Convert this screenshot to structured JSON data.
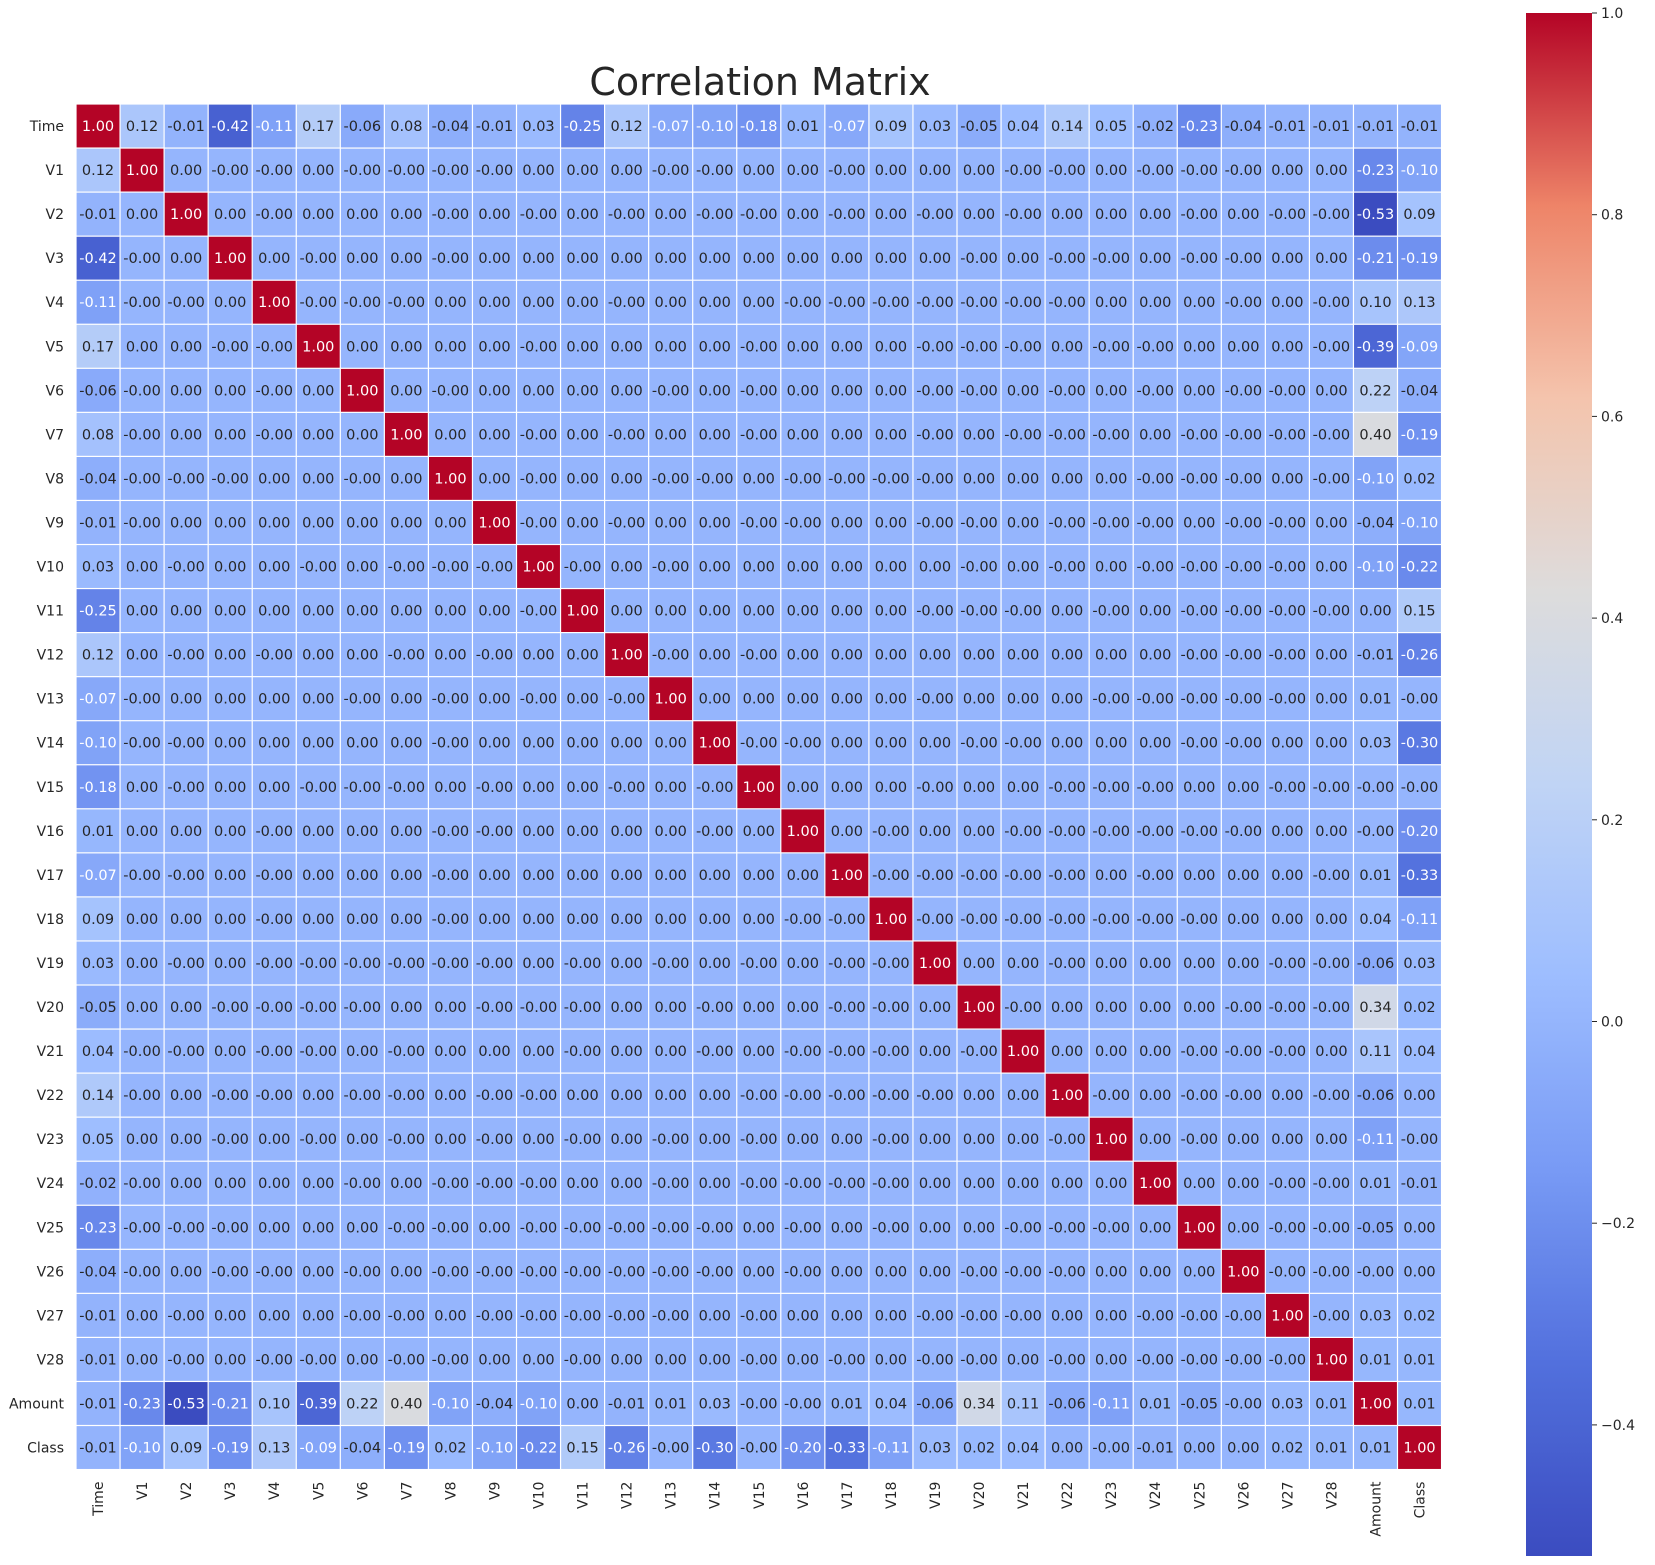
{
  "chart_data": {
    "type": "heatmap",
    "title": "Correlation Matrix",
    "colormap": "coolwarm",
    "vmin": -0.53,
    "vmax": 1.0,
    "colorbar_ticks": [
      1.0,
      0.8,
      0.6,
      0.4,
      0.2,
      0.0,
      -0.2,
      -0.4
    ],
    "colorbar_tick_labels": [
      "1.0",
      "0.8",
      "0.6",
      "0.4",
      "0.2",
      "0.0",
      "−0.2",
      "−0.4"
    ],
    "labels": [
      "Time",
      "V1",
      "V2",
      "V3",
      "V4",
      "V5",
      "V6",
      "V7",
      "V8",
      "V9",
      "V10",
      "V11",
      "V12",
      "V13",
      "V14",
      "V15",
      "V16",
      "V17",
      "V18",
      "V19",
      "V20",
      "V21",
      "V22",
      "V23",
      "V24",
      "V25",
      "V26",
      "V27",
      "V28",
      "Amount",
      "Class"
    ],
    "matrix": [
      [
        "1.00",
        "0.12",
        "-0.01",
        "-0.42",
        "-0.11",
        "0.17",
        "-0.06",
        "0.08",
        "-0.04",
        "-0.01",
        "0.03",
        "-0.25",
        "0.12",
        "-0.07",
        "-0.10",
        "-0.18",
        "0.01",
        "-0.07",
        "0.09",
        "0.03",
        "-0.05",
        "0.04",
        "0.14",
        "0.05",
        "-0.02",
        "-0.23",
        "-0.04",
        "-0.01",
        "-0.01",
        "-0.01",
        "-0.01"
      ],
      [
        "0.12",
        "1.00",
        "0.00",
        "-0.00",
        "-0.00",
        "0.00",
        "-0.00",
        "-0.00",
        "-0.00",
        "-0.00",
        "0.00",
        "0.00",
        "0.00",
        "-0.00",
        "-0.00",
        "0.00",
        "0.00",
        "-0.00",
        "0.00",
        "0.00",
        "0.00",
        "-0.00",
        "-0.00",
        "0.00",
        "-0.00",
        "-0.00",
        "-0.00",
        "0.00",
        "0.00",
        "-0.23",
        "-0.10"
      ],
      [
        "-0.01",
        "0.00",
        "1.00",
        "0.00",
        "-0.00",
        "0.00",
        "0.00",
        "0.00",
        "-0.00",
        "0.00",
        "-0.00",
        "0.00",
        "-0.00",
        "0.00",
        "-0.00",
        "-0.00",
        "0.00",
        "-0.00",
        "0.00",
        "-0.00",
        "0.00",
        "-0.00",
        "0.00",
        "0.00",
        "0.00",
        "-0.00",
        "0.00",
        "-0.00",
        "-0.00",
        "-0.53",
        "0.09"
      ],
      [
        "-0.42",
        "-0.00",
        "0.00",
        "1.00",
        "0.00",
        "-0.00",
        "0.00",
        "0.00",
        "-0.00",
        "0.00",
        "0.00",
        "0.00",
        "0.00",
        "0.00",
        "0.00",
        "0.00",
        "0.00",
        "0.00",
        "0.00",
        "0.00",
        "-0.00",
        "0.00",
        "-0.00",
        "-0.00",
        "0.00",
        "-0.00",
        "-0.00",
        "0.00",
        "0.00",
        "-0.21",
        "-0.19"
      ],
      [
        "-0.11",
        "-0.00",
        "-0.00",
        "0.00",
        "1.00",
        "-0.00",
        "-0.00",
        "-0.00",
        "0.00",
        "0.00",
        "0.00",
        "0.00",
        "-0.00",
        "0.00",
        "0.00",
        "0.00",
        "-0.00",
        "-0.00",
        "-0.00",
        "-0.00",
        "-0.00",
        "-0.00",
        "-0.00",
        "0.00",
        "0.00",
        "0.00",
        "-0.00",
        "0.00",
        "-0.00",
        "0.10",
        "0.13"
      ],
      [
        "0.17",
        "0.00",
        "0.00",
        "-0.00",
        "-0.00",
        "1.00",
        "0.00",
        "0.00",
        "0.00",
        "0.00",
        "-0.00",
        "0.00",
        "0.00",
        "0.00",
        "0.00",
        "-0.00",
        "0.00",
        "0.00",
        "0.00",
        "-0.00",
        "-0.00",
        "-0.00",
        "0.00",
        "-0.00",
        "-0.00",
        "0.00",
        "0.00",
        "0.00",
        "-0.00",
        "-0.39",
        "-0.09"
      ],
      [
        "-0.06",
        "-0.00",
        "0.00",
        "0.00",
        "-0.00",
        "0.00",
        "1.00",
        "0.00",
        "-0.00",
        "0.00",
        "0.00",
        "0.00",
        "0.00",
        "-0.00",
        "0.00",
        "-0.00",
        "0.00",
        "0.00",
        "0.00",
        "-0.00",
        "-0.00",
        "0.00",
        "-0.00",
        "0.00",
        "-0.00",
        "0.00",
        "-0.00",
        "-0.00",
        "0.00",
        "0.22",
        "-0.04"
      ],
      [
        "0.08",
        "-0.00",
        "0.00",
        "0.00",
        "-0.00",
        "0.00",
        "0.00",
        "1.00",
        "0.00",
        "0.00",
        "-0.00",
        "0.00",
        "-0.00",
        "0.00",
        "0.00",
        "-0.00",
        "0.00",
        "0.00",
        "0.00",
        "-0.00",
        "0.00",
        "-0.00",
        "-0.00",
        "-0.00",
        "0.00",
        "-0.00",
        "-0.00",
        "-0.00",
        "-0.00",
        "0.40",
        "-0.19"
      ],
      [
        "-0.04",
        "-0.00",
        "-0.00",
        "-0.00",
        "0.00",
        "0.00",
        "-0.00",
        "0.00",
        "1.00",
        "0.00",
        "-0.00",
        "0.00",
        "0.00",
        "-0.00",
        "-0.00",
        "0.00",
        "-0.00",
        "-0.00",
        "-0.00",
        "-0.00",
        "0.00",
        "0.00",
        "0.00",
        "0.00",
        "-0.00",
        "-0.00",
        "-0.00",
        "0.00",
        "-0.00",
        "-0.10",
        "0.02"
      ],
      [
        "-0.01",
        "-0.00",
        "0.00",
        "0.00",
        "0.00",
        "0.00",
        "0.00",
        "0.00",
        "0.00",
        "1.00",
        "-0.00",
        "0.00",
        "-0.00",
        "0.00",
        "0.00",
        "-0.00",
        "-0.00",
        "0.00",
        "0.00",
        "-0.00",
        "-0.00",
        "0.00",
        "-0.00",
        "-0.00",
        "-0.00",
        "0.00",
        "-0.00",
        "-0.00",
        "0.00",
        "-0.04",
        "-0.10"
      ],
      [
        "0.03",
        "0.00",
        "-0.00",
        "0.00",
        "0.00",
        "-0.00",
        "0.00",
        "-0.00",
        "-0.00",
        "-0.00",
        "1.00",
        "-0.00",
        "0.00",
        "-0.00",
        "0.00",
        "0.00",
        "0.00",
        "0.00",
        "0.00",
        "0.00",
        "-0.00",
        "0.00",
        "-0.00",
        "0.00",
        "-0.00",
        "-0.00",
        "-0.00",
        "-0.00",
        "0.00",
        "-0.10",
        "-0.22"
      ],
      [
        "-0.25",
        "0.00",
        "0.00",
        "0.00",
        "0.00",
        "0.00",
        "0.00",
        "0.00",
        "0.00",
        "0.00",
        "-0.00",
        "1.00",
        "0.00",
        "0.00",
        "0.00",
        "0.00",
        "0.00",
        "0.00",
        "0.00",
        "-0.00",
        "-0.00",
        "-0.00",
        "0.00",
        "-0.00",
        "0.00",
        "-0.00",
        "-0.00",
        "-0.00",
        "-0.00",
        "0.00",
        "0.15"
      ],
      [
        "0.12",
        "0.00",
        "-0.00",
        "0.00",
        "-0.00",
        "0.00",
        "0.00",
        "-0.00",
        "0.00",
        "-0.00",
        "0.00",
        "0.00",
        "1.00",
        "-0.00",
        "0.00",
        "-0.00",
        "0.00",
        "0.00",
        "0.00",
        "0.00",
        "0.00",
        "0.00",
        "0.00",
        "0.00",
        "0.00",
        "-0.00",
        "-0.00",
        "-0.00",
        "0.00",
        "-0.01",
        "-0.26"
      ],
      [
        "-0.07",
        "-0.00",
        "0.00",
        "0.00",
        "0.00",
        "0.00",
        "-0.00",
        "0.00",
        "-0.00",
        "0.00",
        "-0.00",
        "0.00",
        "-0.00",
        "1.00",
        "0.00",
        "0.00",
        "0.00",
        "0.00",
        "0.00",
        "-0.00",
        "0.00",
        "0.00",
        "0.00",
        "-0.00",
        "-0.00",
        "-0.00",
        "-0.00",
        "-0.00",
        "0.00",
        "0.01",
        "-0.00"
      ],
      [
        "-0.10",
        "-0.00",
        "-0.00",
        "0.00",
        "0.00",
        "0.00",
        "0.00",
        "0.00",
        "-0.00",
        "0.00",
        "0.00",
        "0.00",
        "0.00",
        "0.00",
        "1.00",
        "-0.00",
        "-0.00",
        "0.00",
        "0.00",
        "0.00",
        "-0.00",
        "-0.00",
        "0.00",
        "0.00",
        "0.00",
        "-0.00",
        "-0.00",
        "0.00",
        "0.00",
        "0.03",
        "-0.30"
      ],
      [
        "-0.18",
        "0.00",
        "-0.00",
        "0.00",
        "0.00",
        "-0.00",
        "-0.00",
        "-0.00",
        "0.00",
        "-0.00",
        "0.00",
        "0.00",
        "-0.00",
        "0.00",
        "-0.00",
        "1.00",
        "0.00",
        "0.00",
        "0.00",
        "-0.00",
        "0.00",
        "0.00",
        "-0.00",
        "-0.00",
        "-0.00",
        "0.00",
        "0.00",
        "-0.00",
        "-0.00",
        "-0.00",
        "-0.00"
      ],
      [
        "0.01",
        "0.00",
        "0.00",
        "0.00",
        "-0.00",
        "0.00",
        "0.00",
        "0.00",
        "-0.00",
        "-0.00",
        "0.00",
        "0.00",
        "0.00",
        "0.00",
        "-0.00",
        "0.00",
        "1.00",
        "0.00",
        "-0.00",
        "0.00",
        "0.00",
        "-0.00",
        "-0.00",
        "-0.00",
        "-0.00",
        "-0.00",
        "-0.00",
        "0.00",
        "0.00",
        "-0.00",
        "-0.20"
      ],
      [
        "-0.07",
        "-0.00",
        "-0.00",
        "0.00",
        "-0.00",
        "0.00",
        "0.00",
        "0.00",
        "-0.00",
        "0.00",
        "0.00",
        "0.00",
        "0.00",
        "0.00",
        "0.00",
        "0.00",
        "0.00",
        "1.00",
        "-0.00",
        "-0.00",
        "-0.00",
        "-0.00",
        "-0.00",
        "0.00",
        "-0.00",
        "0.00",
        "0.00",
        "0.00",
        "-0.00",
        "0.01",
        "-0.33"
      ],
      [
        "0.09",
        "0.00",
        "0.00",
        "0.00",
        "-0.00",
        "0.00",
        "0.00",
        "0.00",
        "-0.00",
        "0.00",
        "0.00",
        "0.00",
        "0.00",
        "0.00",
        "0.00",
        "0.00",
        "-0.00",
        "-0.00",
        "1.00",
        "-0.00",
        "-0.00",
        "-0.00",
        "-0.00",
        "-0.00",
        "-0.00",
        "-0.00",
        "0.00",
        "0.00",
        "0.00",
        "0.04",
        "-0.11"
      ],
      [
        "0.03",
        "0.00",
        "-0.00",
        "0.00",
        "-0.00",
        "-0.00",
        "-0.00",
        "-0.00",
        "-0.00",
        "-0.00",
        "0.00",
        "-0.00",
        "0.00",
        "-0.00",
        "0.00",
        "-0.00",
        "0.00",
        "-0.00",
        "-0.00",
        "1.00",
        "0.00",
        "0.00",
        "-0.00",
        "0.00",
        "0.00",
        "0.00",
        "0.00",
        "-0.00",
        "-0.00",
        "-0.06",
        "0.03"
      ],
      [
        "-0.05",
        "0.00",
        "0.00",
        "-0.00",
        "-0.00",
        "-0.00",
        "-0.00",
        "0.00",
        "0.00",
        "-0.00",
        "-0.00",
        "-0.00",
        "0.00",
        "0.00",
        "-0.00",
        "0.00",
        "0.00",
        "-0.00",
        "-0.00",
        "0.00",
        "1.00",
        "-0.00",
        "0.00",
        "0.00",
        "0.00",
        "0.00",
        "-0.00",
        "-0.00",
        "-0.00",
        "0.34",
        "0.02"
      ],
      [
        "0.04",
        "-0.00",
        "-0.00",
        "0.00",
        "-0.00",
        "-0.00",
        "0.00",
        "-0.00",
        "0.00",
        "0.00",
        "0.00",
        "-0.00",
        "0.00",
        "0.00",
        "-0.00",
        "0.00",
        "-0.00",
        "-0.00",
        "-0.00",
        "0.00",
        "-0.00",
        "1.00",
        "0.00",
        "0.00",
        "0.00",
        "-0.00",
        "-0.00",
        "-0.00",
        "0.00",
        "0.11",
        "0.04"
      ],
      [
        "0.14",
        "-0.00",
        "0.00",
        "-0.00",
        "-0.00",
        "0.00",
        "-0.00",
        "-0.00",
        "0.00",
        "-0.00",
        "-0.00",
        "0.00",
        "0.00",
        "0.00",
        "0.00",
        "-0.00",
        "-0.00",
        "-0.00",
        "-0.00",
        "-0.00",
        "0.00",
        "0.00",
        "1.00",
        "-0.00",
        "0.00",
        "-0.00",
        "-0.00",
        "0.00",
        "-0.00",
        "-0.06",
        "0.00"
      ],
      [
        "0.05",
        "0.00",
        "0.00",
        "-0.00",
        "0.00",
        "-0.00",
        "0.00",
        "-0.00",
        "0.00",
        "-0.00",
        "0.00",
        "-0.00",
        "0.00",
        "-0.00",
        "0.00",
        "-0.00",
        "0.00",
        "0.00",
        "-0.00",
        "0.00",
        "0.00",
        "0.00",
        "-0.00",
        "1.00",
        "0.00",
        "-0.00",
        "0.00",
        "0.00",
        "0.00",
        "-0.11",
        "-0.00"
      ],
      [
        "-0.02",
        "-0.00",
        "0.00",
        "0.00",
        "0.00",
        "0.00",
        "-0.00",
        "0.00",
        "-0.00",
        "-0.00",
        "-0.00",
        "0.00",
        "0.00",
        "-0.00",
        "0.00",
        "-0.00",
        "-0.00",
        "-0.00",
        "-0.00",
        "0.00",
        "0.00",
        "0.00",
        "0.00",
        "0.00",
        "1.00",
        "0.00",
        "0.00",
        "-0.00",
        "-0.00",
        "0.01",
        "-0.01"
      ],
      [
        "-0.23",
        "-0.00",
        "-0.00",
        "-0.00",
        "0.00",
        "0.00",
        "0.00",
        "-0.00",
        "-0.00",
        "0.00",
        "-0.00",
        "-0.00",
        "-0.00",
        "-0.00",
        "-0.00",
        "0.00",
        "-0.00",
        "0.00",
        "-0.00",
        "0.00",
        "0.00",
        "-0.00",
        "-0.00",
        "-0.00",
        "0.00",
        "1.00",
        "0.00",
        "-0.00",
        "-0.00",
        "-0.05",
        "0.00"
      ],
      [
        "-0.04",
        "-0.00",
        "0.00",
        "-0.00",
        "-0.00",
        "0.00",
        "-0.00",
        "0.00",
        "-0.00",
        "-0.00",
        "-0.00",
        "-0.00",
        "-0.00",
        "-0.00",
        "-0.00",
        "0.00",
        "-0.00",
        "0.00",
        "0.00",
        "0.00",
        "-0.00",
        "-0.00",
        "-0.00",
        "0.00",
        "0.00",
        "0.00",
        "1.00",
        "-0.00",
        "-0.00",
        "-0.00",
        "0.00"
      ],
      [
        "-0.01",
        "0.00",
        "-0.00",
        "0.00",
        "0.00",
        "0.00",
        "-0.00",
        "-0.00",
        "0.00",
        "-0.00",
        "-0.00",
        "-0.00",
        "-0.00",
        "-0.00",
        "0.00",
        "-0.00",
        "0.00",
        "0.00",
        "0.00",
        "-0.00",
        "-0.00",
        "-0.00",
        "0.00",
        "0.00",
        "-0.00",
        "-0.00",
        "-0.00",
        "1.00",
        "-0.00",
        "0.03",
        "0.02"
      ],
      [
        "-0.01",
        "0.00",
        "-0.00",
        "0.00",
        "-0.00",
        "-0.00",
        "0.00",
        "-0.00",
        "-0.00",
        "0.00",
        "0.00",
        "-0.00",
        "0.00",
        "0.00",
        "0.00",
        "-0.00",
        "0.00",
        "-0.00",
        "0.00",
        "-0.00",
        "-0.00",
        "0.00",
        "-0.00",
        "0.00",
        "-0.00",
        "-0.00",
        "-0.00",
        "-0.00",
        "1.00",
        "0.01",
        "0.01"
      ],
      [
        "-0.01",
        "-0.23",
        "-0.53",
        "-0.21",
        "0.10",
        "-0.39",
        "0.22",
        "0.40",
        "-0.10",
        "-0.04",
        "-0.10",
        "0.00",
        "-0.01",
        "0.01",
        "0.03",
        "-0.00",
        "-0.00",
        "0.01",
        "0.04",
        "-0.06",
        "0.34",
        "0.11",
        "-0.06",
        "-0.11",
        "0.01",
        "-0.05",
        "-0.00",
        "0.03",
        "0.01",
        "1.00",
        "0.01"
      ],
      [
        "-0.01",
        "-0.10",
        "0.09",
        "-0.19",
        "0.13",
        "-0.09",
        "-0.04",
        "-0.19",
        "0.02",
        "-0.10",
        "-0.22",
        "0.15",
        "-0.26",
        "-0.00",
        "-0.30",
        "-0.00",
        "-0.20",
        "-0.33",
        "-0.11",
        "0.03",
        "0.02",
        "0.04",
        "0.00",
        "-0.00",
        "-0.01",
        "0.00",
        "0.00",
        "0.02",
        "0.01",
        "0.01",
        "1.00"
      ]
    ]
  }
}
